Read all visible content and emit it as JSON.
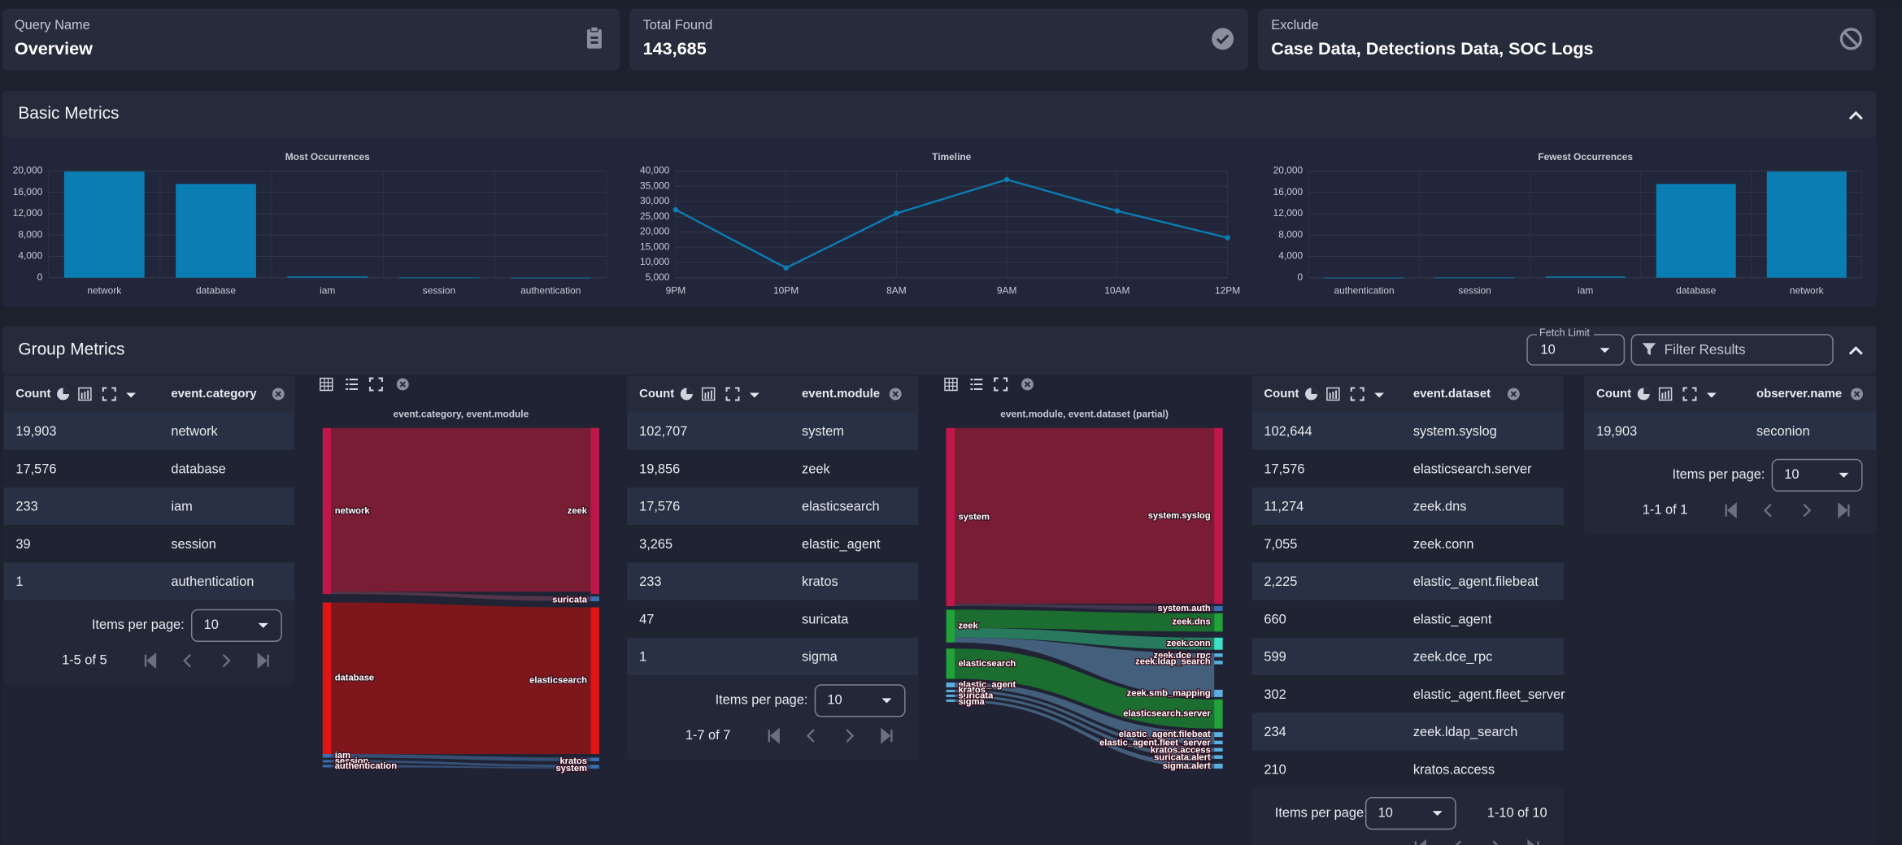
{
  "cards": [
    {
      "label": "Query Name",
      "value": "Overview"
    },
    {
      "label": "Total Found",
      "value": "143,685"
    },
    {
      "label": "Exclude",
      "value": "Case Data, Detections Data, SOC Logs"
    }
  ],
  "basic_metrics": {
    "title": "Basic Metrics"
  },
  "chart_data": [
    {
      "type": "bar",
      "title": "Most Occurrences",
      "categories": [
        "network",
        "database",
        "iam",
        "session",
        "authentication"
      ],
      "values": [
        19903,
        17576,
        233,
        39,
        1
      ],
      "color": "#0a7db3",
      "ylim": [
        0,
        20000
      ],
      "yticks": [
        0,
        {
          "value": 4000,
          "label": "4,000"
        },
        {
          "value": 8000,
          "label": "8,000"
        },
        {
          "value": 12000,
          "label": "12,000"
        },
        {
          "value": 16000,
          "label": "16,000"
        },
        {
          "value": 20000,
          "label": "20,000"
        }
      ],
      "grid": true
    },
    {
      "type": "line",
      "title": "Timeline",
      "categories": [
        "9PM",
        "10PM",
        "8AM",
        "9AM",
        "10AM",
        "12PM"
      ],
      "values": [
        27300,
        8200,
        26100,
        37200,
        26900,
        18100
      ],
      "color": "#0a7db3",
      "ylim": [
        5000,
        40000
      ],
      "yticks": [
        {
          "value": 5000,
          "label": "5,000"
        },
        {
          "value": 10000,
          "label": "10,000"
        },
        {
          "value": 15000,
          "label": "15,000"
        },
        {
          "value": 20000,
          "label": "20,000"
        },
        {
          "value": 25000,
          "label": "25,000"
        },
        {
          "value": 30000,
          "label": "30,000"
        },
        {
          "value": 35000,
          "label": "35,000"
        },
        {
          "value": 40000,
          "label": "40,000"
        }
      ],
      "grid": true
    },
    {
      "type": "bar",
      "title": "Fewest Occurrences",
      "categories": [
        "authentication",
        "session",
        "iam",
        "database",
        "network"
      ],
      "values": [
        1,
        39,
        233,
        17576,
        19903
      ],
      "color": "#0a7db3",
      "ylim": [
        0,
        20000
      ],
      "yticks": [
        0,
        {
          "value": 4000,
          "label": "4,000"
        },
        {
          "value": 8000,
          "label": "8,000"
        },
        {
          "value": 12000,
          "label": "12,000"
        },
        {
          "value": 16000,
          "label": "16,000"
        },
        {
          "value": 20000,
          "label": "20,000"
        }
      ],
      "grid": true
    }
  ],
  "group_metrics": {
    "title": "Group Metrics",
    "fetch_limit_label": "Fetch Limit",
    "fetch_limit": "10",
    "filter_placeholder": "Filter Results"
  },
  "tables": [
    {
      "count_header": "Count",
      "field": "event.category",
      "rows": [
        {
          "count": "19,903",
          "value": "network"
        },
        {
          "count": "17,576",
          "value": "database"
        },
        {
          "count": "233",
          "value": "iam"
        },
        {
          "count": "39",
          "value": "session"
        },
        {
          "count": "1",
          "value": "authentication"
        }
      ],
      "items_per_page_label": "Items per page:",
      "items_per_page": "10",
      "range": "1-5 of 5"
    },
    {
      "count_header": "Count",
      "field": "event.module",
      "rows": [
        {
          "count": "102,707",
          "value": "system"
        },
        {
          "count": "19,856",
          "value": "zeek"
        },
        {
          "count": "17,576",
          "value": "elasticsearch"
        },
        {
          "count": "3,265",
          "value": "elastic_agent"
        },
        {
          "count": "233",
          "value": "kratos"
        },
        {
          "count": "47",
          "value": "suricata"
        },
        {
          "count": "1",
          "value": "sigma"
        }
      ],
      "items_per_page_label": "Items per page:",
      "items_per_page": "10",
      "range": "1-7 of 7"
    },
    {
      "count_header": "Count",
      "field": "event.dataset",
      "rows": [
        {
          "count": "102,644",
          "value": "system.syslog"
        },
        {
          "count": "17,576",
          "value": "elasticsearch.server"
        },
        {
          "count": "11,274",
          "value": "zeek.dns"
        },
        {
          "count": "7,055",
          "value": "zeek.conn"
        },
        {
          "count": "2,225",
          "value": "elastic_agent.filebeat"
        },
        {
          "count": "660",
          "value": "elastic_agent"
        },
        {
          "count": "599",
          "value": "zeek.dce_rpc"
        },
        {
          "count": "302",
          "value": "elastic_agent.fleet_server"
        },
        {
          "count": "234",
          "value": "zeek.ldap_search"
        },
        {
          "count": "210",
          "value": "kratos.access"
        }
      ],
      "items_per_page_label": "Items per page:",
      "items_per_page": "10",
      "range": "1-10 of 10"
    },
    {
      "count_header": "Count",
      "field": "observer.name",
      "rows": [
        {
          "count": "19,903",
          "value": "seconion"
        }
      ],
      "items_per_page_label": "Items per page:",
      "items_per_page": "10",
      "range": "1-1 of 1"
    }
  ],
  "sankeys": [
    {
      "title": "event.category, event.module",
      "left": [
        "network",
        "database",
        "iam",
        "session",
        "authentication"
      ],
      "right": [
        "zeek",
        "suricata",
        "elasticsearch",
        "kratos",
        "system"
      ]
    },
    {
      "title": "event.module, event.dataset (partial)",
      "left": [
        "system",
        "zeek",
        "elasticsearch",
        "elastic_agent",
        "kratos",
        "suricata",
        "sigma"
      ],
      "right": [
        "system.syslog",
        "system.auth",
        "zeek.dns",
        "zeek.conn",
        "zeek.dce_rpc",
        "zeek.ldap_search",
        "zeek.smb_mapping",
        "elasticsearch.server",
        "elastic_agent.filebeat",
        "elastic_agent.fleet_server",
        "kratos.access",
        "suricata.alert",
        "sigma.alert"
      ]
    }
  ]
}
